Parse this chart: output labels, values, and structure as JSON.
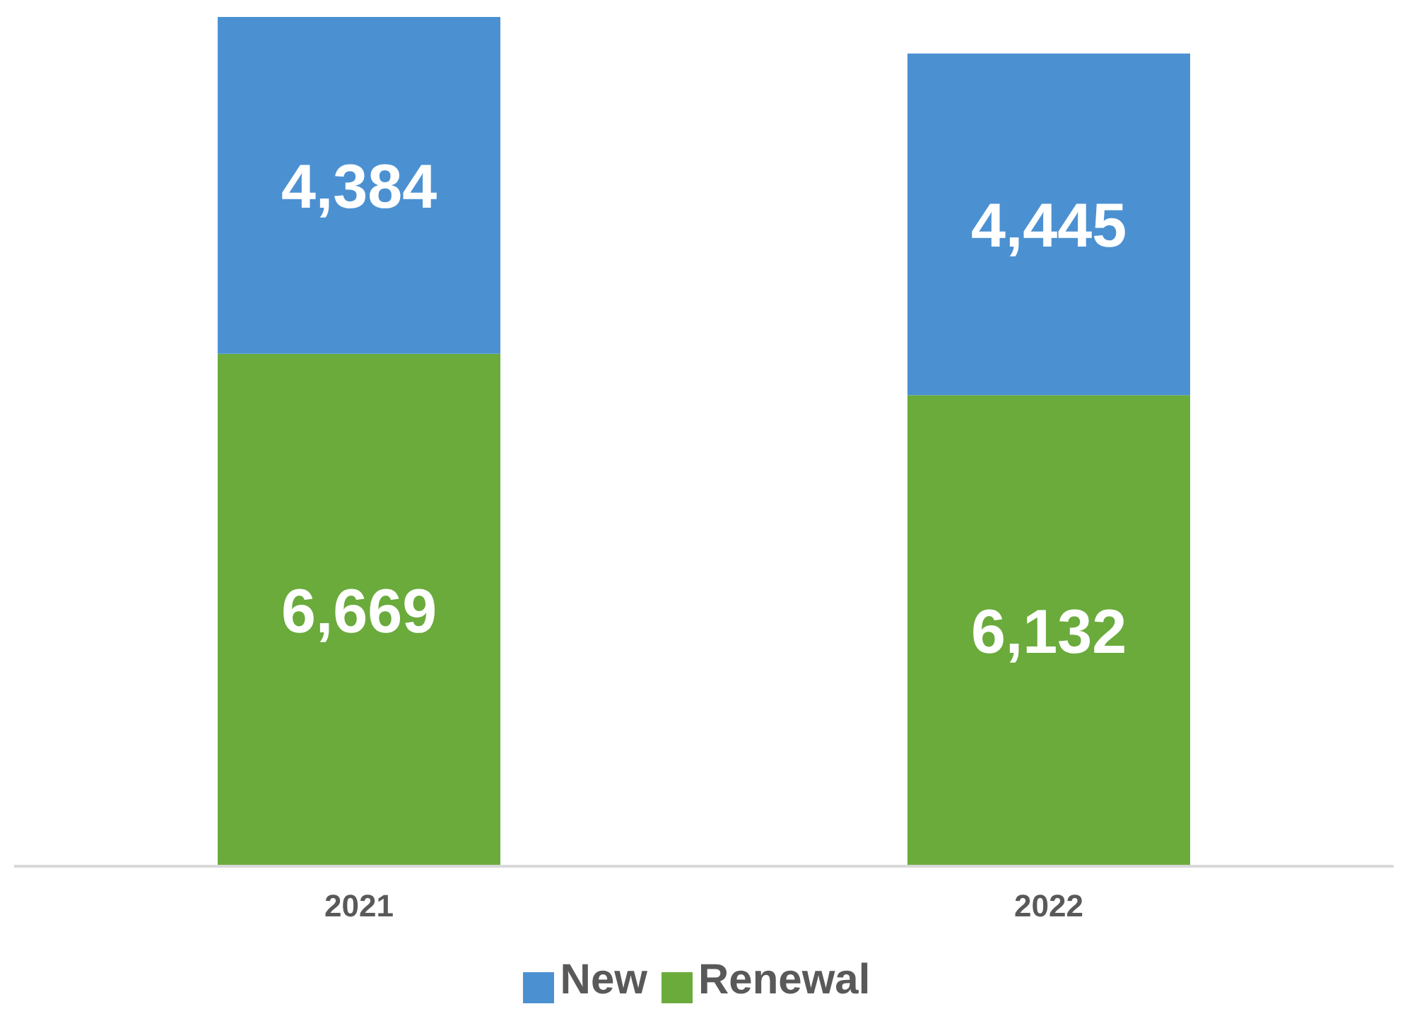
{
  "chart_data": {
    "type": "bar",
    "stacked": true,
    "categories": [
      "2021",
      "2022"
    ],
    "series": [
      {
        "name": "Renewal",
        "color": "#6aab3c",
        "values": [
          6669,
          6132
        ],
        "value_labels": [
          "6,669",
          "6,132"
        ]
      },
      {
        "name": "New",
        "color": "#4b91d2",
        "values": [
          4384,
          4445
        ],
        "value_labels": [
          "4,384",
          "4,445"
        ]
      }
    ],
    "legend": "bottom"
  }
}
